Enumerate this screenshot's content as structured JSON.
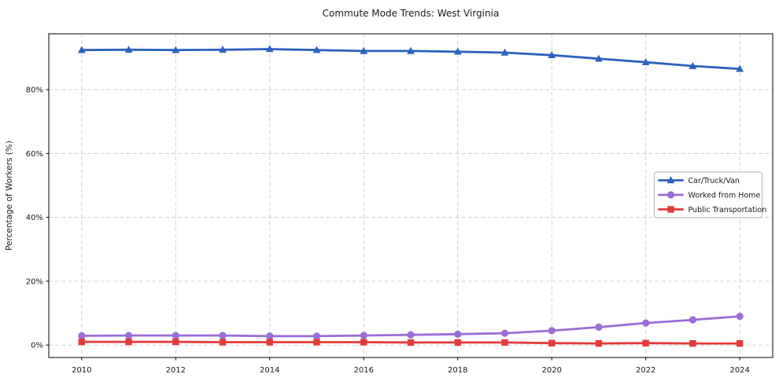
{
  "chart_data": {
    "type": "line",
    "title": "Commute Mode Trends: West Virginia",
    "xlabel": "",
    "ylabel": "Percentage of Workers (%)",
    "x": [
      2010,
      2011,
      2012,
      2013,
      2014,
      2015,
      2016,
      2017,
      2018,
      2019,
      2020,
      2021,
      2022,
      2023,
      2024
    ],
    "series": [
      {
        "name": "Car/Truck/Van",
        "marker": "triangle",
        "color": "#2b62be",
        "values": [
          92.4,
          92.5,
          92.4,
          92.5,
          92.7,
          92.4,
          92.1,
          92.1,
          91.9,
          91.6,
          90.8,
          89.7,
          88.6,
          87.4,
          86.5
        ]
      },
      {
        "name": "Worked from Home",
        "marker": "circle",
        "color": "#9a6dd7",
        "values": [
          2.9,
          3.0,
          3.0,
          3.0,
          2.8,
          2.8,
          3.0,
          3.2,
          3.4,
          3.7,
          4.5,
          5.6,
          6.9,
          7.9,
          9.0
        ]
      },
      {
        "name": "Public Transportation",
        "marker": "square",
        "color": "#e13b3a",
        "values": [
          1.0,
          1.0,
          1.0,
          0.9,
          0.9,
          0.9,
          0.9,
          0.8,
          0.8,
          0.8,
          0.6,
          0.5,
          0.6,
          0.5,
          0.5
        ]
      }
    ],
    "xticks": {
      "values": [
        2010,
        2012,
        2014,
        2016,
        2018,
        2020,
        2022,
        2024
      ],
      "labels": [
        "2010",
        "2012",
        "2014",
        "2016",
        "2018",
        "2020",
        "2022",
        "2024"
      ]
    },
    "yticks": {
      "values": [
        0,
        20,
        40,
        60,
        80
      ],
      "labels": [
        "0%",
        "20%",
        "40%",
        "60%",
        "80%"
      ]
    },
    "xlim": [
      2009.3,
      2024.7
    ],
    "ylim": [
      -3.9,
      97.5
    ],
    "grid": true,
    "grid_style": "dashed",
    "grid_color": "#cdcdcd",
    "legend_position": "center right",
    "background_color": "#ffffff",
    "spine_color": "#000000"
  }
}
